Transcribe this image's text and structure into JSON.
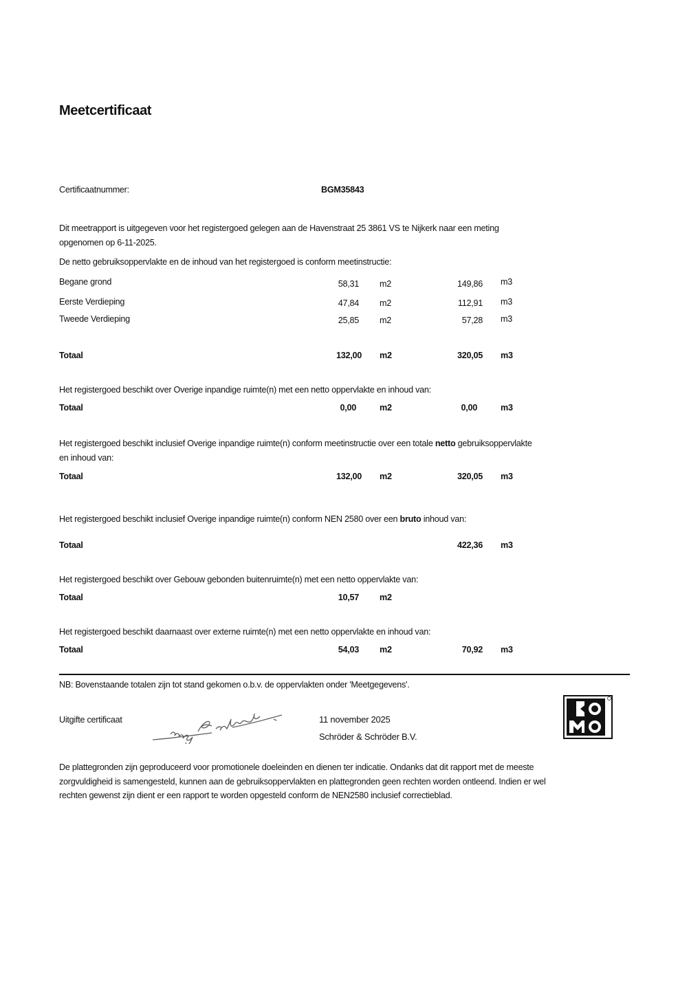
{
  "title": "Meetcertificaat",
  "certificate": {
    "label": "Certificaatnummer:",
    "number": "BGM35843"
  },
  "intro": "Dit meetrapport is uitgegeven voor het registergoed gelegen aan de Havenstraat 25 3861 VS te Nijkerk naar een meting opgenomen op 6-11-2025.",
  "netto_intro": "De netto gebruiksoppervlakte en de inhoud van het registergoed is conform meetinstructie:",
  "floors": [
    {
      "name": "Begane grond",
      "area": "58,31",
      "area_unit": "m2",
      "volume": "149,86",
      "volume_unit": "m3"
    },
    {
      "name": "Eerste Verdieping",
      "area": "47,84",
      "area_unit": "m2",
      "volume": "112,91",
      "volume_unit": "m3"
    },
    {
      "name": "Tweede Verdieping",
      "area": "25,85",
      "area_unit": "m2",
      "volume": "57,28",
      "volume_unit": "m3"
    }
  ],
  "total": {
    "label": "Totaal",
    "area": "132,00",
    "area_unit": "m2",
    "volume": "320,05",
    "volume_unit": "m3"
  },
  "overige": {
    "text": "Het registergoed beschikt over Overige inpandige ruimte(n) met een netto oppervlakte en inhoud van:",
    "label": "Totaal",
    "area": "0,00",
    "area_unit": "m2",
    "volume": "0,00",
    "volume_unit": "m3"
  },
  "inclusief_netto": {
    "text_before": "Het registergoed beschikt inclusief Overige inpandige ruimte(n) conform meetinstructie over een totale ",
    "bold": "netto",
    "text_after": " gebruiksoppervlakte en inhoud van:",
    "label": "Totaal",
    "area": "132,00",
    "area_unit": "m2",
    "volume": "320,05",
    "volume_unit": "m3"
  },
  "bruto": {
    "text_before": "Het registergoed beschikt inclusief Overige inpandige ruimte(n) conform NEN 2580 over een ",
    "bold": "bruto",
    "text_after": " inhoud van:",
    "label": "Totaal",
    "volume": "422,36",
    "volume_unit": "m3"
  },
  "buiten": {
    "text": "Het registergoed beschikt over Gebouw gebonden buitenruimte(n) met een netto oppervlakte van:",
    "label": "Totaal",
    "area": "10,57",
    "area_unit": "m2"
  },
  "extern": {
    "text": "Het registergoed beschikt daarnaast over externe ruimte(n) met een netto oppervlakte en inhoud van:",
    "label": "Totaal",
    "area": "54,03",
    "area_unit": "m2",
    "volume": "70,92",
    "volume_unit": "m3"
  },
  "note": "NB: Bovenstaande totalen zijn tot stand gekomen o.b.v. de oppervlakten onder 'Meetgegevens'.",
  "issue": {
    "label": "Uitgifte certificaat",
    "date": "11 november 2025",
    "company": "Schröder & Schröder B.V.",
    "signature": "Schröder",
    "logo": "KOMO"
  },
  "disclaimer": "De plattegronden zijn geproduceerd voor promotionele doeleinden en dienen ter indicatie. Ondanks dat dit rapport met de meeste zorgvuldigheid is samengesteld, kunnen aan de gebruiksoppervlakten en plattegronden geen rechten worden ontleend. Indien er wel rechten gewenst zijn dient er een rapport te worden opgesteld conform de NEN2580 inclusief correctieblad."
}
